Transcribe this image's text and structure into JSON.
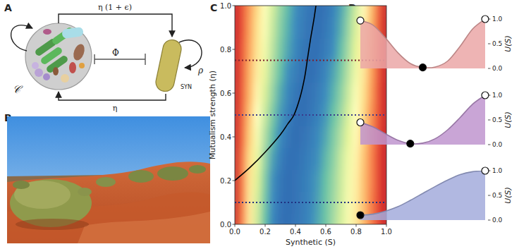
{
  "panel_labels": [
    "A",
    "B",
    "C",
    "D"
  ],
  "diagram": {
    "community": "𝒞",
    "synthetic": "SYN",
    "forward_interaction": "η (1 + ϵ)",
    "backward_interaction": "η",
    "inhibition": "Φ",
    "self_growth": "ρ"
  },
  "chart_data": [
    {
      "type": "heatmap",
      "xlabel": "Synthetic (S)",
      "ylabel": "Mutualism strength (η)",
      "xlim": [
        0,
        1
      ],
      "ylim": [
        0,
        1
      ],
      "xticks": [
        {
          "value": 0,
          "label": "0.0"
        },
        0.2,
        0.4,
        0.6,
        0.8,
        {
          "value": 1,
          "label": "1.0"
        }
      ],
      "yticks": [
        {
          "value": 0,
          "label": "0.0"
        },
        0.2,
        0.4,
        0.6,
        0.8,
        {
          "value": 1,
          "label": "1.0"
        }
      ],
      "cell_x": [
        0,
        0.05,
        0.1,
        0.15,
        0.2,
        0.25,
        0.3,
        0.35,
        0.4,
        0.45,
        0.5,
        0.55,
        0.6,
        0.65,
        0.7,
        0.75,
        0.8,
        0.85,
        0.9,
        0.95,
        1
      ],
      "cell_y": [
        0,
        0.1,
        0.2,
        0.3,
        0.4,
        0.5,
        0.6,
        0.7,
        0.8,
        0.9,
        1
      ],
      "cell_range": [
        0,
        1
      ],
      "cells": [
        [
          1,
          0.77,
          0.57,
          0.38,
          0.22,
          0.1,
          0.02,
          0,
          0.03,
          0.06,
          0.11,
          0.17,
          0.23,
          0.31,
          0.39,
          0.47,
          0.57,
          0.67,
          0.77,
          0.88,
          1
        ],
        [
          1,
          0.78,
          0.57,
          0.39,
          0.24,
          0.12,
          0.03,
          0,
          0.02,
          0.06,
          0.1,
          0.16,
          0.23,
          0.3,
          0.38,
          0.47,
          0.56,
          0.66,
          0.77,
          0.88,
          1
        ],
        [
          1,
          0.78,
          0.58,
          0.41,
          0.26,
          0.13,
          0.04,
          0,
          0.02,
          0.05,
          0.1,
          0.15,
          0.22,
          0.29,
          0.37,
          0.46,
          0.55,
          0.66,
          0.76,
          0.88,
          1
        ],
        [
          1,
          0.79,
          0.6,
          0.44,
          0.29,
          0.16,
          0.07,
          0.01,
          0.01,
          0.04,
          0.08,
          0.13,
          0.2,
          0.27,
          0.36,
          0.45,
          0.54,
          0.65,
          0.76,
          0.88,
          1
        ],
        [
          1,
          0.81,
          0.63,
          0.47,
          0.33,
          0.21,
          0.11,
          0.04,
          0,
          0.02,
          0.06,
          0.11,
          0.17,
          0.25,
          0.33,
          0.42,
          0.52,
          0.63,
          0.75,
          0.87,
          1
        ],
        [
          1,
          0.82,
          0.65,
          0.5,
          0.37,
          0.25,
          0.15,
          0.07,
          0.01,
          0,
          0.03,
          0.08,
          0.14,
          0.22,
          0.3,
          0.4,
          0.5,
          0.61,
          0.74,
          0.86,
          1
        ],
        [
          1,
          0.83,
          0.68,
          0.53,
          0.4,
          0.29,
          0.18,
          0.1,
          0.04,
          0,
          0.02,
          0.06,
          0.12,
          0.19,
          0.27,
          0.37,
          0.48,
          0.59,
          0.72,
          0.86,
          1
        ],
        [
          1,
          0.84,
          0.69,
          0.56,
          0.43,
          0.32,
          0.22,
          0.13,
          0.07,
          0.02,
          0,
          0.03,
          0.09,
          0.16,
          0.24,
          0.34,
          0.45,
          0.57,
          0.71,
          0.85,
          1
        ],
        [
          1,
          0.85,
          0.71,
          0.58,
          0.46,
          0.35,
          0.25,
          0.17,
          0.1,
          0.04,
          0.01,
          0.01,
          0.06,
          0.12,
          0.21,
          0.31,
          0.42,
          0.55,
          0.69,
          0.84,
          1
        ],
        [
          1,
          0.86,
          0.72,
          0.59,
          0.48,
          0.37,
          0.27,
          0.19,
          0.12,
          0.06,
          0.02,
          0,
          0.04,
          0.1,
          0.18,
          0.29,
          0.4,
          0.53,
          0.68,
          0.83,
          1
        ],
        [
          1,
          0.86,
          0.73,
          0.61,
          0.49,
          0.39,
          0.29,
          0.21,
          0.13,
          0.07,
          0.03,
          0,
          0.02,
          0.08,
          0.16,
          0.26,
          0.38,
          0.51,
          0.66,
          0.82,
          1
        ]
      ],
      "series": [
        {
          "type": "line",
          "color": "#000000",
          "line_style": "solid",
          "x": [
            0,
            0.1,
            0.2,
            0.3,
            0.35,
            0.39,
            0.43,
            0.46,
            0.48,
            0.5,
            0.52,
            0.535
          ],
          "values": [
            0.2,
            0.26,
            0.33,
            0.41,
            0.46,
            0.5,
            0.58,
            0.67,
            0.76,
            0.85,
            0.93,
            1.0
          ]
        },
        {
          "type": "line",
          "color": "#7b1f2e",
          "line_style": "dotted",
          "x": [
            0,
            1
          ],
          "values": [
            0.75,
            0.75
          ]
        },
        {
          "type": "line",
          "color": "#3a3a8c",
          "line_style": "dotted",
          "x": [
            0,
            1
          ],
          "values": [
            0.5,
            0.5
          ]
        },
        {
          "type": "line",
          "color": "#1f2f80",
          "line_style": "dotted",
          "x": [
            0,
            1
          ],
          "values": [
            0.1,
            0.1
          ]
        }
      ]
    },
    {
      "type": "area",
      "ylabel": "U(S)",
      "xlim": [
        0,
        1
      ],
      "ylim": [
        0,
        1
      ],
      "yticks": [
        {
          "value": 0,
          "label": "0.0"
        },
        0.5,
        {
          "value": 1,
          "label": "1.0"
        }
      ],
      "tick_labels": "y",
      "series": [
        {
          "type": "area",
          "color": "#eba7a7",
          "x": [
            0,
            0.1,
            0.2,
            0.3,
            0.4,
            0.5,
            0.6,
            0.7,
            0.8,
            0.9,
            1
          ],
          "values": [
            0.97,
            0.88,
            0.62,
            0.32,
            0.1,
            0.02,
            0.03,
            0.15,
            0.45,
            0.8,
            1.0
          ]
        },
        {
          "type": "scatter",
          "marker": "open",
          "color": "#ffffff",
          "x": [
            0,
            1
          ],
          "values": [
            0.97,
            1.0
          ]
        },
        {
          "type": "scatter",
          "marker": "filled",
          "color": "#000000",
          "x": [
            0.5
          ],
          "values": [
            0.02
          ]
        }
      ]
    },
    {
      "type": "area",
      "ylabel": "U(S)",
      "xlim": [
        0,
        1
      ],
      "ylim": [
        0,
        1
      ],
      "yticks": [
        {
          "value": 0,
          "label": "0.0"
        },
        0.5,
        {
          "value": 1,
          "label": "1.0"
        }
      ],
      "tick_labels": "y",
      "series": [
        {
          "type": "area",
          "color": "#bf95cf",
          "x": [
            0,
            0.1,
            0.2,
            0.3,
            0.4,
            0.5,
            0.6,
            0.7,
            0.8,
            0.9,
            1
          ],
          "values": [
            0.45,
            0.36,
            0.22,
            0.09,
            0.02,
            0.03,
            0.12,
            0.3,
            0.55,
            0.82,
            1.0
          ]
        },
        {
          "type": "scatter",
          "marker": "open",
          "color": "#ffffff",
          "x": [
            0,
            1
          ],
          "values": [
            0.45,
            1.0
          ]
        },
        {
          "type": "scatter",
          "marker": "filled",
          "color": "#000000",
          "x": [
            0.4
          ],
          "values": [
            0.02
          ]
        }
      ]
    },
    {
      "type": "area",
      "ylabel": "U(S)",
      "xlim": [
        0,
        1
      ],
      "ylim": [
        0,
        1
      ],
      "yticks": [
        {
          "value": 0,
          "label": "0.0"
        },
        0.5,
        {
          "value": 1,
          "label": "1.0"
        }
      ],
      "tick_labels": "y",
      "series": [
        {
          "type": "area",
          "color": "#a3acdc",
          "x": [
            0,
            0.1,
            0.2,
            0.3,
            0.4,
            0.5,
            0.6,
            0.7,
            0.8,
            0.9,
            1
          ],
          "values": [
            0.1,
            0.12,
            0.18,
            0.27,
            0.4,
            0.54,
            0.68,
            0.81,
            0.92,
            0.98,
            1.0
          ]
        },
        {
          "type": "scatter",
          "marker": "open",
          "color": "#ffffff",
          "x": [
            1
          ],
          "values": [
            1.0
          ]
        },
        {
          "type": "scatter",
          "marker": "filled",
          "color": "#000000",
          "x": [
            0
          ],
          "values": [
            0.1
          ]
        }
      ]
    }
  ]
}
